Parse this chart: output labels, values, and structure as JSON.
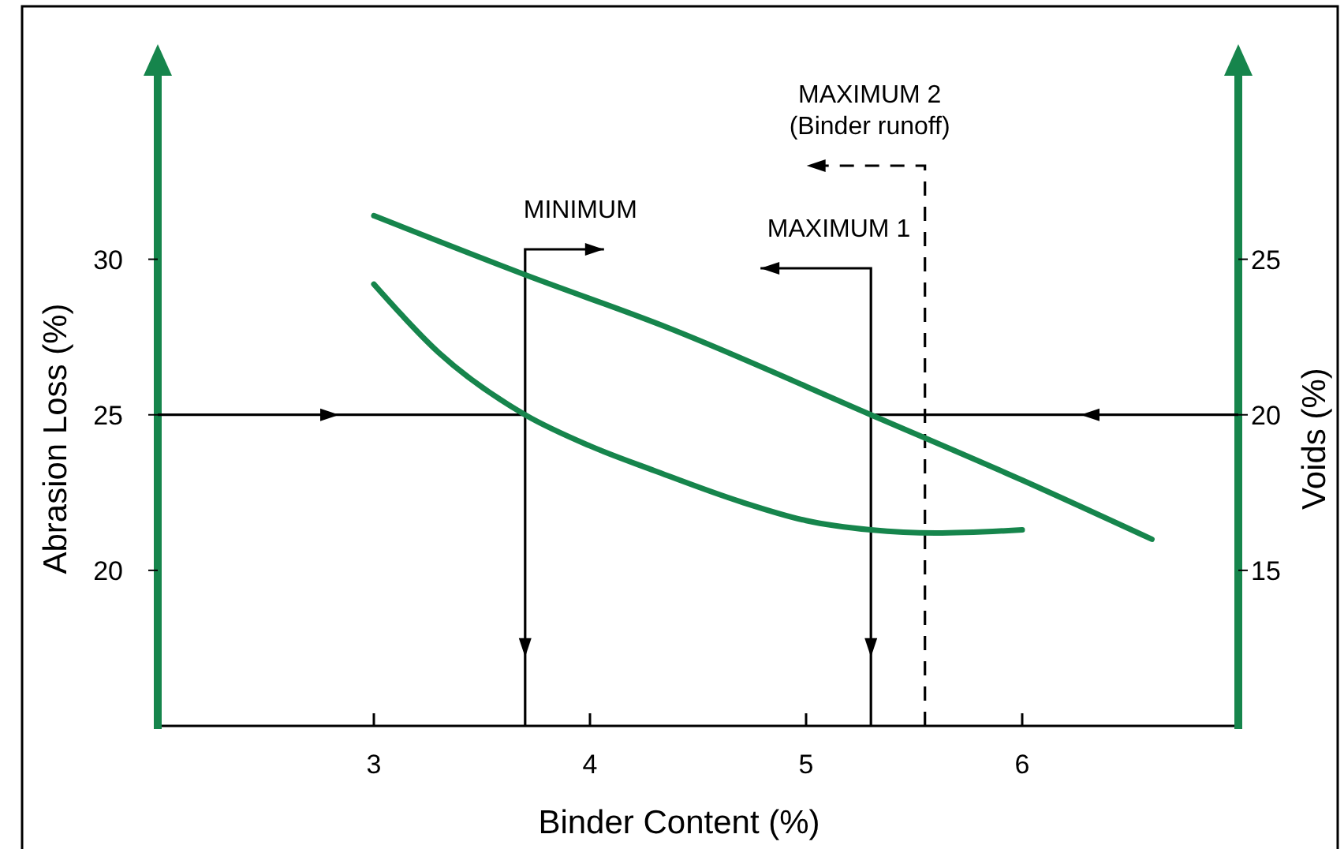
{
  "chart_data": {
    "type": "line",
    "xlabel": "Binder Content (%)",
    "ylabel": "Abrasion Loss (%)",
    "y2label": "Voids (%)",
    "xlim": [
      2,
      7
    ],
    "xticks": [
      3,
      4,
      5,
      6
    ],
    "ylim": [
      15,
      36
    ],
    "yticks": [
      20,
      25,
      30
    ],
    "y2lim": [
      10,
      31
    ],
    "y2ticks": [
      15,
      20,
      25
    ],
    "grid": false,
    "marker": "none",
    "line_style": "solid",
    "series": [
      {
        "color": "#16854c",
        "x": [
          3,
          3.3,
          3.7,
          4,
          4.3,
          4.7,
          5,
          5.3,
          5.6,
          6
        ],
        "values": [
          29.2,
          27,
          25,
          24,
          23.2,
          22.2,
          21.6,
          21.3,
          21.2,
          21.3
        ]
      },
      {
        "color": "#16854c",
        "axis": "y2",
        "x": [
          3,
          3.7,
          4.36,
          5.3,
          6,
          6.6
        ],
        "values": [
          26.4,
          24.5,
          22.8,
          20,
          17.9,
          16
        ]
      }
    ],
    "ref_lines": [
      {
        "axis": "x",
        "value": 3.7,
        "label": "MINIMUM",
        "color": "#000000",
        "line_style": "solid"
      },
      {
        "axis": "x",
        "value": 5.3,
        "label": "MAXIMUM 1",
        "color": "#000000",
        "line_style": "solid"
      },
      {
        "axis": "x",
        "value": 5.55,
        "label": "MAXIMUM 2\n(Binder runoff)",
        "color": "#000000",
        "line_style": "dashed"
      },
      {
        "axis": "y",
        "value": 25,
        "color": "#000000",
        "line_style": "solid"
      }
    ]
  }
}
